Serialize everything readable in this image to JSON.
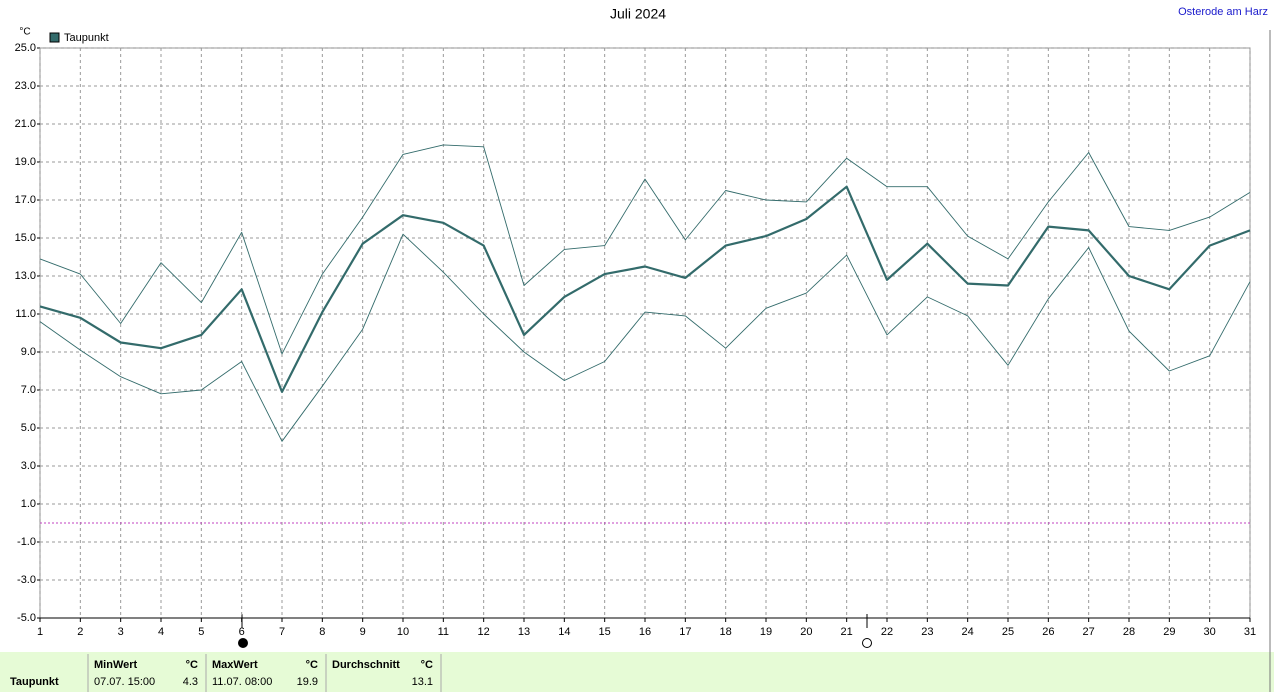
{
  "chart_data": {
    "type": "line",
    "title": "Juli 2024",
    "location": "Osterode am Harz",
    "y_unit": "°C",
    "x": [
      1,
      2,
      3,
      4,
      5,
      6,
      7,
      8,
      9,
      10,
      11,
      12,
      13,
      14,
      15,
      16,
      17,
      18,
      19,
      20,
      21,
      22,
      23,
      24,
      25,
      26,
      27,
      28,
      29,
      30,
      31
    ],
    "xlim": [
      1,
      31
    ],
    "xticks": [
      1,
      2,
      3,
      4,
      5,
      6,
      7,
      8,
      9,
      10,
      11,
      12,
      13,
      14,
      15,
      16,
      17,
      18,
      19,
      20,
      21,
      22,
      23,
      24,
      25,
      26,
      27,
      28,
      29,
      30,
      31
    ],
    "ylim": [
      -5,
      25
    ],
    "yticks": [
      {
        "value": 25,
        "label": "25.0"
      },
      {
        "value": 23,
        "label": "23.0"
      },
      {
        "value": 21,
        "label": "21.0"
      },
      {
        "value": 19,
        "label": "19.0"
      },
      {
        "value": 17,
        "label": "17.0"
      },
      {
        "value": 15,
        "label": "15.0"
      },
      {
        "value": 13,
        "label": "13.0"
      },
      {
        "value": 11,
        "label": "11.0"
      },
      {
        "value": 9,
        "label": "9.0"
      },
      {
        "value": 7,
        "label": "7.0"
      },
      {
        "value": 5,
        "label": "5.0"
      },
      {
        "value": 3,
        "label": "3.0"
      },
      {
        "value": 1,
        "label": "1.0"
      },
      {
        "value": -1,
        "label": "-1.0"
      },
      {
        "value": -3,
        "label": "-3.0"
      },
      {
        "value": -5,
        "label": "-5.0"
      }
    ],
    "grid": true,
    "hline": {
      "value": 0,
      "color": "#c040c0"
    },
    "series": [
      {
        "name": "Taupunkt",
        "color": "#336b6b",
        "width": 2.2,
        "values": [
          11.4,
          10.8,
          9.5,
          9.2,
          9.9,
          12.3,
          6.9,
          11.1,
          14.7,
          16.2,
          15.8,
          14.6,
          9.9,
          11.9,
          13.1,
          13.5,
          12.9,
          14.6,
          15.1,
          16.0,
          17.7,
          12.8,
          14.7,
          12.6,
          12.5,
          15.6,
          15.4,
          13.0,
          12.3,
          14.6,
          15.4
        ]
      },
      {
        "color": "#336b6b",
        "width": 0.9,
        "values": [
          13.9,
          13.1,
          10.5,
          13.7,
          11.6,
          15.3,
          8.9,
          13.1,
          16.1,
          19.4,
          19.9,
          19.8,
          12.5,
          14.4,
          14.6,
          18.1,
          14.9,
          17.5,
          17.0,
          16.9,
          19.2,
          17.7,
          17.7,
          15.1,
          13.9,
          16.9,
          19.5,
          15.6,
          15.4,
          16.1,
          17.4
        ]
      },
      {
        "color": "#336b6b",
        "width": 0.9,
        "values": [
          10.6,
          9.1,
          7.7,
          6.8,
          7.0,
          8.5,
          4.3,
          7.2,
          10.2,
          15.2,
          13.2,
          11.0,
          9.0,
          7.5,
          8.5,
          11.1,
          10.9,
          9.2,
          11.3,
          12.1,
          14.1,
          9.9,
          11.9,
          10.9,
          8.3,
          11.8,
          14.5,
          10.1,
          8.0,
          8.8,
          12.7
        ]
      }
    ]
  },
  "summary": {
    "row_label": "Taupunkt",
    "columns": [
      {
        "header": "MinWert",
        "unit": "°C",
        "time": "07.07. 15:00",
        "value": 4.3
      },
      {
        "header": "MaxWert",
        "unit": "°C",
        "time": "11.07. 08:00",
        "value": 19.9
      },
      {
        "header": "Durchschnitt",
        "unit": "°C",
        "value": 13.1
      }
    ]
  }
}
